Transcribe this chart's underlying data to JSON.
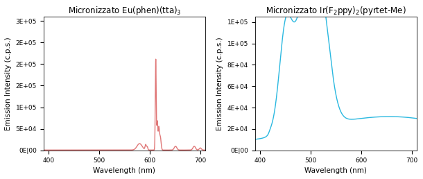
{
  "left_title": "Micronizzato Eu(phen)(tta)$_3$",
  "right_title": "Micronizzato Ir(F$_2$ppy)$_2$(pyrtet-Me)",
  "xlabel": "Wavelength (nm)",
  "ylabel": "Emission Intensity (c.p.s.)",
  "left_color": "#e07878",
  "right_color": "#2ab8e0",
  "left_xlim": [
    390,
    710
  ],
  "right_xlim": [
    390,
    710
  ],
  "left_ylim": [
    0,
    310000
  ],
  "right_ylim": [
    0,
    125000
  ],
  "left_xticks": [
    400,
    500,
    600,
    700
  ],
  "right_xticks": [
    400,
    500,
    600,
    700
  ],
  "font_size": 7.5,
  "title_font_size": 8.5,
  "line_width": 1.0
}
